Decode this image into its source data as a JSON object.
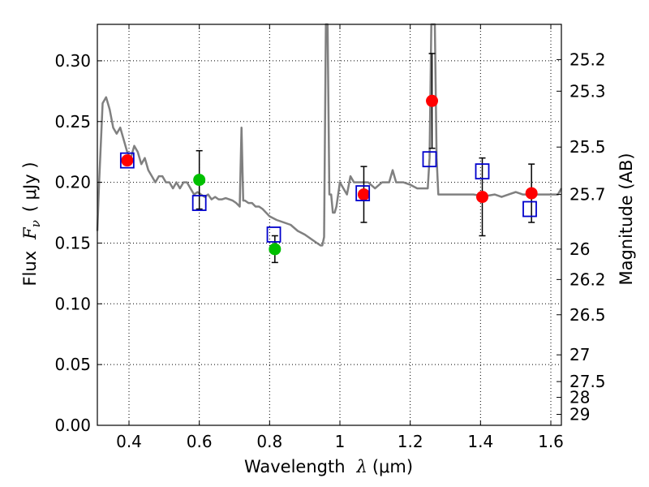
{
  "chart_data": {
    "type": "scatter",
    "title": "",
    "xlabel_prefix": "Wavelength",
    "xlabel_symbol": "λ",
    "xlabel_unit": "(μm)",
    "ylabel_prefix": "Flux",
    "ylabel_symbol": "F",
    "ylabel_subscript": "ν",
    "ylabel_unit": "( μJy )",
    "y2label": "Magnitude (AB)",
    "xlim": [
      0.31,
      1.63
    ],
    "ylim": [
      0.0,
      0.33
    ],
    "grid": true,
    "x_ticks": [
      0.4,
      0.6,
      0.8,
      1.0,
      1.2,
      1.4,
      1.6
    ],
    "x_tick_labels": [
      "0.4",
      "0.6",
      "0.8",
      "1",
      "1.2",
      "1.4",
      "1.6"
    ],
    "y_ticks": [
      0.0,
      0.05,
      0.1,
      0.15,
      0.2,
      0.25,
      0.3
    ],
    "y_tick_labels": [
      "0.00",
      "0.05",
      "0.10",
      "0.15",
      "0.20",
      "0.25",
      "0.30"
    ],
    "mag_ticks": [
      {
        "label": "25.2",
        "flux": 0.301
      },
      {
        "label": "25.3",
        "flux": 0.275
      },
      {
        "label": "25.5",
        "flux": 0.229
      },
      {
        "label": "25.7",
        "flux": 0.19
      },
      {
        "label": "26",
        "flux": 0.145
      },
      {
        "label": "26.2",
        "flux": 0.12
      },
      {
        "label": "26.5",
        "flux": 0.091
      },
      {
        "label": "27",
        "flux": 0.058
      },
      {
        "label": "27.5",
        "flux": 0.036
      },
      {
        "label": "28",
        "flux": 0.023
      },
      {
        "label": "29",
        "flux": 0.009
      }
    ],
    "colors": {
      "model": "#808080",
      "green_points": "#00c000",
      "red_points": "#ff0000",
      "model_boxes": "#0000cc",
      "errorbars": "#000000",
      "grid": "#000000"
    },
    "series": [
      {
        "name": "model spectrum",
        "style": "line",
        "x": [
          0.31,
          0.315,
          0.325,
          0.335,
          0.345,
          0.355,
          0.365,
          0.375,
          0.385,
          0.395,
          0.405,
          0.415,
          0.425,
          0.435,
          0.445,
          0.455,
          0.465,
          0.475,
          0.485,
          0.495,
          0.505,
          0.515,
          0.525,
          0.535,
          0.545,
          0.555,
          0.565,
          0.575,
          0.585,
          0.595,
          0.605,
          0.615,
          0.625,
          0.635,
          0.645,
          0.655,
          0.665,
          0.675,
          0.685,
          0.695,
          0.705,
          0.715,
          0.72,
          0.725,
          0.73,
          0.74,
          0.75,
          0.76,
          0.77,
          0.78,
          0.8,
          0.82,
          0.84,
          0.86,
          0.88,
          0.9,
          0.92,
          0.935,
          0.945,
          0.95,
          0.955,
          0.96,
          0.965,
          0.97,
          0.975,
          0.98,
          0.985,
          0.99,
          1.0,
          1.01,
          1.02,
          1.03,
          1.04,
          1.05,
          1.06,
          1.08,
          1.1,
          1.12,
          1.14,
          1.15,
          1.16,
          1.18,
          1.2,
          1.22,
          1.24,
          1.25,
          1.255,
          1.26,
          1.265,
          1.27,
          1.275,
          1.28,
          1.29,
          1.3,
          1.32,
          1.34,
          1.36,
          1.38,
          1.4,
          1.42,
          1.44,
          1.46,
          1.48,
          1.5,
          1.52,
          1.54,
          1.56,
          1.58,
          1.6,
          1.62,
          1.63
        ],
        "y": [
          0.16,
          0.2,
          0.265,
          0.27,
          0.26,
          0.245,
          0.24,
          0.245,
          0.235,
          0.225,
          0.22,
          0.23,
          0.225,
          0.215,
          0.22,
          0.21,
          0.205,
          0.2,
          0.205,
          0.205,
          0.2,
          0.2,
          0.195,
          0.2,
          0.195,
          0.2,
          0.2,
          0.195,
          0.19,
          0.192,
          0.19,
          0.188,
          0.19,
          0.186,
          0.188,
          0.186,
          0.186,
          0.187,
          0.186,
          0.185,
          0.183,
          0.18,
          0.245,
          0.185,
          0.185,
          0.183,
          0.183,
          0.18,
          0.18,
          0.178,
          0.172,
          0.169,
          0.167,
          0.165,
          0.16,
          0.157,
          0.153,
          0.15,
          0.148,
          0.148,
          0.155,
          0.33,
          0.33,
          0.19,
          0.19,
          0.175,
          0.175,
          0.18,
          0.2,
          0.195,
          0.19,
          0.205,
          0.2,
          0.2,
          0.2,
          0.2,
          0.195,
          0.2,
          0.2,
          0.21,
          0.2,
          0.2,
          0.198,
          0.195,
          0.195,
          0.195,
          0.22,
          0.33,
          0.33,
          0.33,
          0.22,
          0.19,
          0.19,
          0.19,
          0.19,
          0.19,
          0.19,
          0.19,
          0.189,
          0.189,
          0.19,
          0.188,
          0.19,
          0.192,
          0.19,
          0.19,
          0.19,
          0.19,
          0.19,
          0.19,
          0.195
        ]
      },
      {
        "name": "photometry (green)",
        "style": "points",
        "points": [
          {
            "x": 0.6,
            "y": 0.202,
            "err_lo": 0.024,
            "err_hi": 0.024
          },
          {
            "x": 0.815,
            "y": 0.145,
            "err_lo": 0.011,
            "err_hi": 0.011
          }
        ]
      },
      {
        "name": "photometry (red)",
        "style": "points",
        "points": [
          {
            "x": 1.068,
            "y": 0.19,
            "err_lo": 0.023,
            "err_hi": 0.023
          },
          {
            "x": 1.262,
            "y": 0.267,
            "err_lo": 0.039,
            "err_hi": 0.039
          },
          {
            "x": 1.405,
            "y": 0.188,
            "err_lo": 0.032,
            "err_hi": 0.032
          },
          {
            "x": 1.545,
            "y": 0.191,
            "err_lo": 0.024,
            "err_hi": 0.024
          }
        ]
      },
      {
        "name": "model photometry (boxes)",
        "style": "open-squares",
        "points": [
          {
            "x": 0.395,
            "y": 0.218
          },
          {
            "x": 0.6,
            "y": 0.183
          },
          {
            "x": 0.812,
            "y": 0.157
          },
          {
            "x": 1.065,
            "y": 0.191
          },
          {
            "x": 1.255,
            "y": 0.219
          },
          {
            "x": 1.405,
            "y": 0.209
          },
          {
            "x": 1.54,
            "y": 0.178
          }
        ]
      }
    ],
    "extra_markers": [
      {
        "type": "red-circle",
        "x": 0.395,
        "y": 0.218
      }
    ]
  }
}
